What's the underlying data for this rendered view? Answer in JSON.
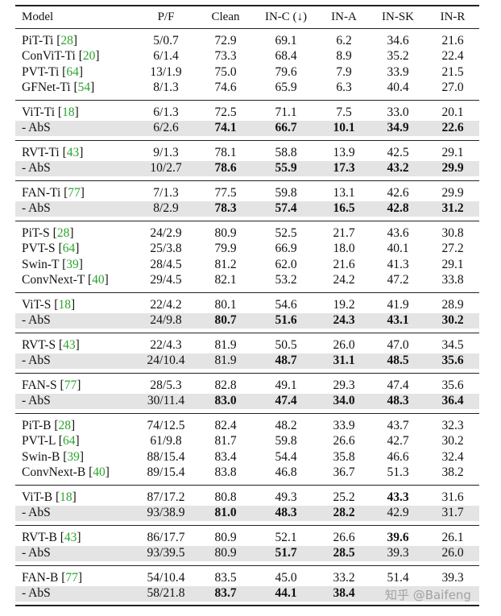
{
  "table": {
    "headers": [
      "Model",
      "P/F",
      "Clean",
      "IN-C (↓)",
      "IN-A",
      "IN-SK",
      "IN-R"
    ],
    "groups": [
      {
        "rows": [
          {
            "name": "PiT-Ti",
            "ref": "28",
            "cells": [
              "5/0.7",
              "72.9",
              "69.1",
              "6.2",
              "34.6",
              "21.6"
            ]
          },
          {
            "name": "ConViT-Ti",
            "ref": "20",
            "cells": [
              "6/1.4",
              "73.3",
              "68.4",
              "8.9",
              "35.2",
              "22.4"
            ]
          },
          {
            "name": "PVT-Ti",
            "ref": "64",
            "cells": [
              "13/1.9",
              "75.0",
              "79.6",
              "7.9",
              "33.9",
              "21.5"
            ]
          },
          {
            "name": "GFNet-Ti",
            "ref": "54",
            "cells": [
              "8/1.3",
              "74.6",
              "65.9",
              "6.3",
              "40.4",
              "27.0"
            ]
          }
        ]
      },
      {
        "rows": [
          {
            "name": "ViT-Ti",
            "ref": "18",
            "cells": [
              "6/1.3",
              "72.5",
              "71.1",
              "7.5",
              "33.0",
              "20.1"
            ]
          },
          {
            "name": "- AbS",
            "ref": "",
            "shade": true,
            "bold": [
              1,
              2,
              3,
              4,
              5
            ],
            "cells": [
              "6/2.6",
              "74.1",
              "66.7",
              "10.1",
              "34.9",
              "22.6"
            ]
          }
        ]
      },
      {
        "rows": [
          {
            "name": "RVT-Ti",
            "ref": "43",
            "cells": [
              "9/1.3",
              "78.1",
              "58.8",
              "13.9",
              "42.5",
              "29.1"
            ]
          },
          {
            "name": "- AbS",
            "ref": "",
            "shade": true,
            "bold": [
              1,
              2,
              3,
              4,
              5
            ],
            "cells": [
              "10/2.7",
              "78.6",
              "55.9",
              "17.3",
              "43.2",
              "29.9"
            ]
          }
        ]
      },
      {
        "rows": [
          {
            "name": "FAN-Ti",
            "ref": "77",
            "cells": [
              "7/1.3",
              "77.5",
              "59.8",
              "13.1",
              "42.6",
              "29.9"
            ]
          },
          {
            "name": "- AbS",
            "ref": "",
            "shade": true,
            "bold": [
              1,
              2,
              3,
              4,
              5
            ],
            "cells": [
              "8/2.9",
              "78.3",
              "57.4",
              "16.5",
              "42.8",
              "31.2"
            ]
          }
        ]
      },
      {
        "rows": [
          {
            "name": "PiT-S",
            "ref": "28",
            "cells": [
              "24/2.9",
              "80.9",
              "52.5",
              "21.7",
              "43.6",
              "30.8"
            ]
          },
          {
            "name": "PVT-S",
            "ref": "64",
            "cells": [
              "25/3.8",
              "79.9",
              "66.9",
              "18.0",
              "40.1",
              "27.2"
            ]
          },
          {
            "name": "Swin-T",
            "ref": "39",
            "cells": [
              "28/4.5",
              "81.2",
              "62.0",
              "21.6",
              "41.3",
              "29.1"
            ]
          },
          {
            "name": "ConvNext-T",
            "ref": "40",
            "cells": [
              "29/4.5",
              "82.1",
              "53.2",
              "24.2",
              "47.2",
              "33.8"
            ]
          }
        ]
      },
      {
        "rows": [
          {
            "name": "ViT-S",
            "ref": "18",
            "cells": [
              "22/4.2",
              "80.1",
              "54.6",
              "19.2",
              "41.9",
              "28.9"
            ]
          },
          {
            "name": "- AbS",
            "ref": "",
            "shade": true,
            "bold": [
              1,
              2,
              3,
              4,
              5
            ],
            "cells": [
              "24/9.8",
              "80.7",
              "51.6",
              "24.3",
              "43.1",
              "30.2"
            ]
          }
        ]
      },
      {
        "rows": [
          {
            "name": "RVT-S",
            "ref": "43",
            "cells": [
              "22/4.3",
              "81.9",
              "50.5",
              "26.0",
              "47.0",
              "34.5"
            ]
          },
          {
            "name": "- AbS",
            "ref": "",
            "shade": true,
            "bold": [
              2,
              3,
              4,
              5
            ],
            "cells": [
              "24/10.4",
              "81.9",
              "48.7",
              "31.1",
              "48.5",
              "35.6"
            ]
          }
        ]
      },
      {
        "rows": [
          {
            "name": "FAN-S",
            "ref": "77",
            "cells": [
              "28/5.3",
              "82.8",
              "49.1",
              "29.3",
              "47.4",
              "35.6"
            ]
          },
          {
            "name": "- AbS",
            "ref": "",
            "shade": true,
            "bold": [
              1,
              2,
              3,
              4,
              5
            ],
            "cells": [
              "30/11.4",
              "83.0",
              "47.4",
              "34.0",
              "48.3",
              "36.4"
            ]
          }
        ]
      },
      {
        "rows": [
          {
            "name": "PiT-B",
            "ref": "28",
            "cells": [
              "74/12.5",
              "82.4",
              "48.2",
              "33.9",
              "43.7",
              "32.3"
            ]
          },
          {
            "name": "PVT-L",
            "ref": "64",
            "cells": [
              "61/9.8",
              "81.7",
              "59.8",
              "26.6",
              "42.7",
              "30.2"
            ]
          },
          {
            "name": "Swin-B",
            "ref": "39",
            "cells": [
              "88/15.4",
              "83.4",
              "54.4",
              "35.8",
              "46.6",
              "32.4"
            ]
          },
          {
            "name": "ConvNext-B",
            "ref": "40",
            "cells": [
              "89/15.4",
              "83.8",
              "46.8",
              "36.7",
              "51.3",
              "38.2"
            ]
          }
        ]
      },
      {
        "rows": [
          {
            "name": "ViT-B",
            "ref": "18",
            "bold": [
              4
            ],
            "cells": [
              "87/17.2",
              "80.8",
              "49.3",
              "25.2",
              "43.3",
              "31.6"
            ]
          },
          {
            "name": "- AbS",
            "ref": "",
            "shade": true,
            "bold": [
              1,
              2,
              3
            ],
            "cells": [
              "93/38.9",
              "81.0",
              "48.3",
              "28.2",
              "42.9",
              "31.7"
            ]
          }
        ]
      },
      {
        "rows": [
          {
            "name": "RVT-B",
            "ref": "43",
            "bold": [
              4
            ],
            "cells": [
              "86/17.7",
              "80.9",
              "52.1",
              "26.6",
              "39.6",
              "26.1"
            ]
          },
          {
            "name": "- AbS",
            "ref": "",
            "shade": true,
            "bold": [
              2,
              3
            ],
            "cells": [
              "93/39.5",
              "80.9",
              "51.7",
              "28.5",
              "39.3",
              "26.0"
            ]
          }
        ]
      },
      {
        "rows": [
          {
            "name": "FAN-B",
            "ref": "77",
            "cells": [
              "54/10.4",
              "83.5",
              "45.0",
              "33.2",
              "51.4",
              "39.3"
            ]
          },
          {
            "name": "- AbS",
            "ref": "",
            "shade": true,
            "bold": [
              1,
              2,
              3
            ],
            "cells": [
              "58/21.8",
              "83.7",
              "44.1",
              "38.4",
              "",
              ""
            ]
          }
        ]
      }
    ]
  },
  "watermark": "知乎 @Baifeng"
}
